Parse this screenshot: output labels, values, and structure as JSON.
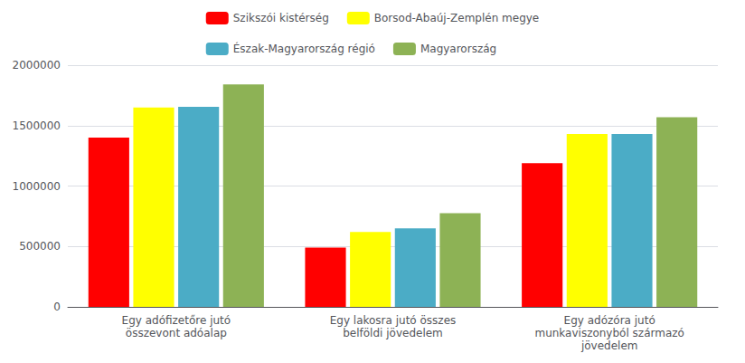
{
  "chart_data": {
    "type": "bar",
    "categories": [
      "Egy adófizetőre jutó\nösszevont adóalap",
      "Egy lakosra jutó összes\nbelföldi jövedelem",
      "Egy adózóra jutó\nmunkaviszonyból származó\njövedelem"
    ],
    "series": [
      {
        "name": "Szikszói kistérség",
        "color": "#FF0000",
        "values": [
          1400000,
          490000,
          1190000
        ]
      },
      {
        "name": "Borsod-Abaúj-Zemplén megye",
        "color": "#FFFF00",
        "values": [
          1650000,
          620000,
          1430000
        ]
      },
      {
        "name": "Észak-Magyarország régió",
        "color": "#4BACC6",
        "values": [
          1655000,
          650000,
          1430000
        ]
      },
      {
        "name": "Magyarország",
        "color": "#8DB255",
        "values": [
          1840000,
          775000,
          1570000
        ]
      }
    ],
    "ylim": [
      0,
      2000000
    ],
    "yticks": [
      0,
      500000,
      1000000,
      1500000,
      2000000
    ],
    "grid": true,
    "legend": "upper center"
  }
}
